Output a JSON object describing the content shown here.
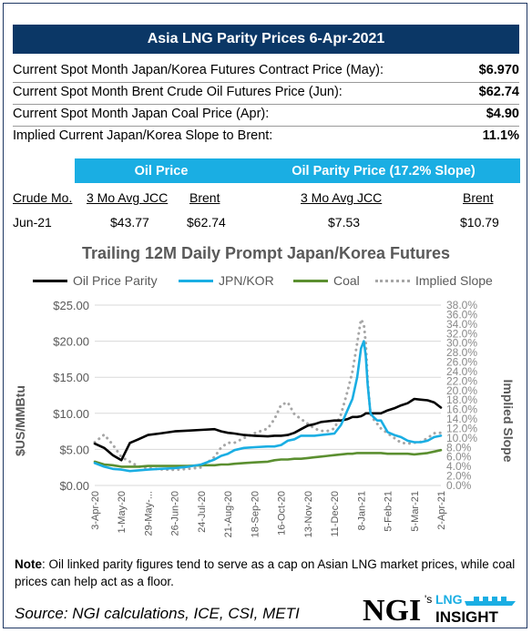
{
  "header": {
    "title": "Asia LNG Parity Prices 6-Apr-2021"
  },
  "summary": [
    {
      "label": "Current Spot Month Japan/Korea Futures Contract Price (May):",
      "value": "$6.970"
    },
    {
      "label": "Current Spot Month Brent Crude Oil Futures Price (Jun):",
      "value": "$62.74"
    },
    {
      "label": "Current Spot Month Japan Coal Price (Apr):",
      "value": "$4.90"
    },
    {
      "label": "Implied Current Japan/Korea Slope to Brent:",
      "value": "11.1%"
    }
  ],
  "oil_price": {
    "title": "Oil Price",
    "headers": [
      "Crude Mo.",
      "3 Mo Avg JCC",
      "Brent"
    ],
    "values": [
      "Jun-21",
      "$43.77",
      "$62.74"
    ]
  },
  "parity_price": {
    "title": "Oil Parity Price (17.2% Slope)",
    "headers": [
      "3 Mo Avg JCC",
      "Brent"
    ],
    "values": [
      "$7.53",
      "$10.79"
    ]
  },
  "chart_data": {
    "type": "line",
    "title": "Trailing 12M Daily Prompt Japan/Korea Futures",
    "ylabel": "$US/MMBtu",
    "y2label": "Implied Slope",
    "ylim": [
      0,
      25
    ],
    "y2lim": [
      0,
      0.38
    ],
    "yticks": [
      "$0.00",
      "$5.00",
      "$10.00",
      "$15.00",
      "$20.00",
      "$25.00"
    ],
    "y2ticks": [
      "0.0%",
      "2.0%",
      "4.0%",
      "6.0%",
      "8.0%",
      "10.0%",
      "12.0%",
      "14.0%",
      "16.0%",
      "18.0%",
      "20.0%",
      "22.0%",
      "24.0%",
      "26.0%",
      "28.0%",
      "30.0%",
      "32.0%",
      "34.0%",
      "36.0%",
      "38.0%"
    ],
    "xticks": [
      "3-Apr-20",
      "1-May-20",
      "29-May-...",
      "26-Jun-20",
      "24-Jul-20",
      "21-Aug-20",
      "18-Sep-20",
      "16-Oct-20",
      "13-Nov-20",
      "11-Dec-20",
      "8-Jan-21",
      "5-Feb-21",
      "5-Mar-21",
      "2-Apr-21"
    ],
    "legend_position": "top",
    "x": [
      "2020-04-03",
      "2020-04-13",
      "2020-04-22",
      "2020-05-01",
      "2020-05-10",
      "2020-05-19",
      "2020-05-29",
      "2020-06-10",
      "2020-06-26",
      "2020-07-10",
      "2020-07-24",
      "2020-08-07",
      "2020-08-14",
      "2020-08-21",
      "2020-08-28",
      "2020-09-07",
      "2020-09-18",
      "2020-10-02",
      "2020-10-09",
      "2020-10-16",
      "2020-10-23",
      "2020-10-30",
      "2020-11-06",
      "2020-11-13",
      "2020-11-20",
      "2020-11-27",
      "2020-12-04",
      "2020-12-11",
      "2020-12-18",
      "2020-12-25",
      "2020-12-30",
      "2021-01-04",
      "2021-01-08",
      "2021-01-11",
      "2021-01-13",
      "2021-01-15",
      "2021-01-18",
      "2021-01-21",
      "2021-01-25",
      "2021-01-29",
      "2021-02-05",
      "2021-02-12",
      "2021-02-19",
      "2021-02-26",
      "2021-03-05",
      "2021-03-12",
      "2021-03-19",
      "2021-03-26",
      "2021-04-02"
    ],
    "series": [
      {
        "name": "Oil Price Parity",
        "color": "#000000",
        "style": "solid",
        "values": [
          5.8,
          5.2,
          4.2,
          3.5,
          5.9,
          6.4,
          7.0,
          7.2,
          7.5,
          7.6,
          7.7,
          7.8,
          7.5,
          7.3,
          7.2,
          7.0,
          6.9,
          6.8,
          6.9,
          6.9,
          7.0,
          7.3,
          7.8,
          8.3,
          8.5,
          8.8,
          8.9,
          9.0,
          9.0,
          9.2,
          9.5,
          9.5,
          9.6,
          9.8,
          10.0,
          10.0,
          10.0,
          10.0,
          10.0,
          10.0,
          10.4,
          10.7,
          11.1,
          11.4,
          12.0,
          11.9,
          11.8,
          11.5,
          10.8
        ]
      },
      {
        "name": "JPN/KOR",
        "color": "#1aaee3",
        "style": "solid",
        "values": [
          3.1,
          2.6,
          2.3,
          2.2,
          2.0,
          2.1,
          2.2,
          2.3,
          2.4,
          2.6,
          2.9,
          3.6,
          4.1,
          4.4,
          4.9,
          5.2,
          5.3,
          5.4,
          5.4,
          5.6,
          6.2,
          6.4,
          6.9,
          6.9,
          6.9,
          7.0,
          7.1,
          7.2,
          8.4,
          10.5,
          12.0,
          15.0,
          19.0,
          20.0,
          18.0,
          14.0,
          10.0,
          9.5,
          9.0,
          9.0,
          7.4,
          7.0,
          6.7,
          6.2,
          6.0,
          6.0,
          6.2,
          6.7,
          6.9
        ]
      },
      {
        "name": "Coal",
        "color": "#5b8f30",
        "style": "solid",
        "values": [
          3.3,
          2.9,
          2.8,
          2.6,
          2.6,
          2.6,
          2.7,
          2.7,
          2.7,
          2.7,
          2.8,
          2.8,
          2.9,
          2.9,
          3.0,
          3.1,
          3.2,
          3.3,
          3.5,
          3.6,
          3.6,
          3.7,
          3.7,
          3.8,
          3.9,
          4.0,
          4.1,
          4.2,
          4.3,
          4.4,
          4.4,
          4.5,
          4.5,
          4.5,
          4.5,
          4.5,
          4.5,
          4.5,
          4.5,
          4.5,
          4.4,
          4.4,
          4.4,
          4.4,
          4.3,
          4.4,
          4.5,
          4.7,
          4.9
        ]
      },
      {
        "name": "Implied Slope",
        "color": "#a6a6a6",
        "style": "dotted",
        "axis": "right",
        "values": [
          0.091,
          0.107,
          0.086,
          0.06,
          0.05,
          0.04,
          0.037,
          0.034,
          0.033,
          0.035,
          0.038,
          0.06,
          0.08,
          0.09,
          0.09,
          0.1,
          0.11,
          0.12,
          0.14,
          0.17,
          0.175,
          0.15,
          0.14,
          0.13,
          0.12,
          0.115,
          0.115,
          0.12,
          0.15,
          0.2,
          0.24,
          0.3,
          0.35,
          0.34,
          0.3,
          0.22,
          0.15,
          0.14,
          0.13,
          0.12,
          0.11,
          0.1,
          0.09,
          0.088,
          0.09,
          0.092,
          0.1,
          0.11,
          0.111
        ]
      }
    ]
  },
  "note": {
    "label": "Note",
    "text": ": Oil linked parity figures tend to serve as a cap on Asian LNG market prices, while coal prices can help act as a floor."
  },
  "source": "Source: NGI calculations, ICE, CSI, METI",
  "logo": {
    "brand": "NGI",
    "suffix": "'s",
    "line1": "LNG",
    "line2": "INSIGHT"
  }
}
